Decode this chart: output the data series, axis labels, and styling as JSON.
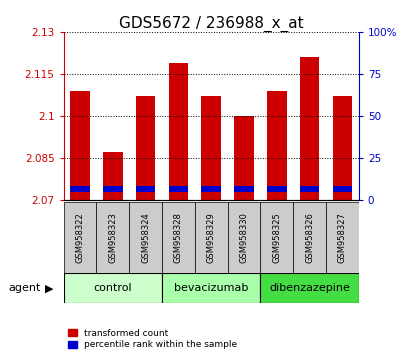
{
  "title": "GDS5672 / 236988_x_at",
  "samples": [
    "GSM958322",
    "GSM958323",
    "GSM958324",
    "GSM958328",
    "GSM958329",
    "GSM958330",
    "GSM958325",
    "GSM958326",
    "GSM958327"
  ],
  "transformed_count": [
    2.109,
    2.087,
    2.107,
    2.119,
    2.107,
    2.1,
    2.109,
    2.121,
    2.107
  ],
  "ymin": 2.07,
  "ymax": 2.13,
  "yticks": [
    2.07,
    2.085,
    2.1,
    2.115,
    2.13
  ],
  "ytick_labels": [
    "2.07",
    "2.085",
    "2.1",
    "2.115",
    "2.13"
  ],
  "right_yticks": [
    0,
    25,
    50,
    75,
    100
  ],
  "right_ytick_labels": [
    "0",
    "25",
    "50",
    "75",
    "100%"
  ],
  "bar_color": "#cc0000",
  "blue_color": "#0000cc",
  "blue_bar_base": 2.073,
  "blue_bar_height": 0.002,
  "groups": [
    {
      "label": "control",
      "indices": [
        0,
        1,
        2
      ],
      "color": "#ccffcc"
    },
    {
      "label": "bevacizumab",
      "indices": [
        3,
        4,
        5
      ],
      "color": "#aaffaa"
    },
    {
      "label": "dibenzazepine",
      "indices": [
        6,
        7,
        8
      ],
      "color": "#44dd44"
    }
  ],
  "agent_label": "agent",
  "legend_items": [
    {
      "label": "transformed count",
      "color": "#cc0000"
    },
    {
      "label": "percentile rank within the sample",
      "color": "#0000cc"
    }
  ],
  "bar_width": 0.6,
  "figure_width": 4.1,
  "figure_height": 3.54,
  "dpi": 100,
  "left_axis_color": "#cc0000",
  "right_axis_color": "#0000cc",
  "title_fontsize": 11,
  "tick_fontsize": 7.5,
  "label_fontsize": 8,
  "sample_fontsize": 6,
  "group_fontsize": 8,
  "bg_color": "#ffffff",
  "sample_box_color": "#cccccc"
}
